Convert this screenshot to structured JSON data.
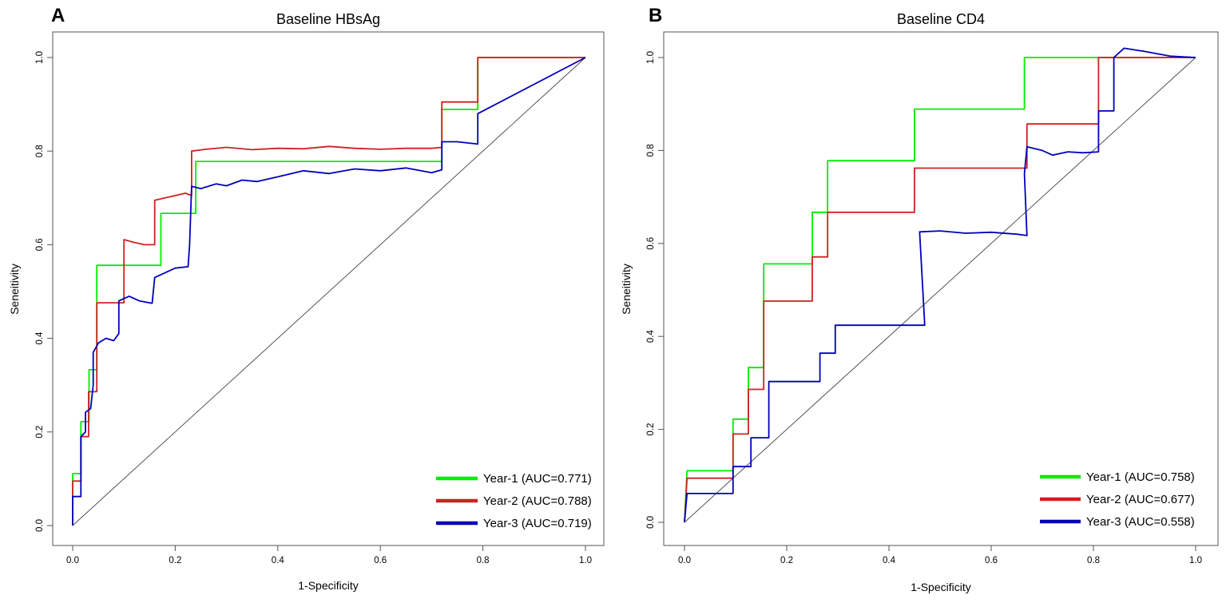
{
  "figure": {
    "background": "#ffffff",
    "axis_color": "#555555",
    "diagonal_color": "#444444"
  },
  "chart_data": [
    {
      "panel": "A",
      "type": "line",
      "title": "Baseline HBsAg",
      "xlabel": "1-Specificity",
      "ylabel": "Seneitivity",
      "xlim": [
        0,
        1
      ],
      "ylim": [
        0,
        1
      ],
      "xticks": [
        0.0,
        0.2,
        0.4,
        0.6,
        0.8,
        1.0
      ],
      "xtick_labels": [
        "0.0",
        "0.2",
        "0.4",
        "0.6",
        "0.8",
        "1.0"
      ],
      "yticks": [
        0.0,
        0.2,
        0.4,
        0.6,
        0.8,
        1.0
      ],
      "ytick_labels": [
        "0.0",
        "0.2",
        "0.4",
        "0.6",
        "0.8",
        "1.0"
      ],
      "grid": false,
      "reference_diagonal": true,
      "legend_position": "bottom-right",
      "series": [
        {
          "name": "Year-1",
          "legend_label": "Year-1 (AUC=0.771)",
          "auc": 0.771,
          "color": "#00ee00",
          "points": [
            [
              0,
              0
            ],
            [
              0,
              0.111
            ],
            [
              0.016,
              0.111
            ],
            [
              0.016,
              0.222
            ],
            [
              0.032,
              0.222
            ],
            [
              0.032,
              0.333
            ],
            [
              0.047,
              0.333
            ],
            [
              0.047,
              0.556
            ],
            [
              0.172,
              0.556
            ],
            [
              0.172,
              0.667
            ],
            [
              0.24,
              0.667
            ],
            [
              0.24,
              0.778
            ],
            [
              0.72,
              0.778
            ],
            [
              0.72,
              0.889
            ],
            [
              0.79,
              0.889
            ],
            [
              0.79,
              1.0
            ],
            [
              1.0,
              1.0
            ]
          ]
        },
        {
          "name": "Year-2",
          "legend_label": "Year-2 (AUC=0.788)",
          "auc": 0.788,
          "color": "#cc2222",
          "points": [
            [
              0,
              0
            ],
            [
              0,
              0.095
            ],
            [
              0.016,
              0.095
            ],
            [
              0.016,
              0.19
            ],
            [
              0.031,
              0.19
            ],
            [
              0.031,
              0.286
            ],
            [
              0.047,
              0.286
            ],
            [
              0.047,
              0.476
            ],
            [
              0.1,
              0.476
            ],
            [
              0.1,
              0.611
            ],
            [
              0.12,
              0.605
            ],
            [
              0.14,
              0.6
            ],
            [
              0.16,
              0.6
            ],
            [
              0.16,
              0.695
            ],
            [
              0.18,
              0.7
            ],
            [
              0.2,
              0.705
            ],
            [
              0.22,
              0.71
            ],
            [
              0.232,
              0.705
            ],
            [
              0.232,
              0.8
            ],
            [
              0.26,
              0.804
            ],
            [
              0.3,
              0.808
            ],
            [
              0.35,
              0.803
            ],
            [
              0.4,
              0.806
            ],
            [
              0.45,
              0.805
            ],
            [
              0.5,
              0.81
            ],
            [
              0.55,
              0.806
            ],
            [
              0.6,
              0.804
            ],
            [
              0.65,
              0.806
            ],
            [
              0.7,
              0.806
            ],
            [
              0.72,
              0.808
            ],
            [
              0.72,
              0.905
            ],
            [
              0.79,
              0.905
            ],
            [
              0.79,
              1.0
            ],
            [
              1.0,
              1.0
            ]
          ]
        },
        {
          "name": "Year-3",
          "legend_label": "Year-3 (AUC=0.719)",
          "auc": 0.719,
          "color": "#0000bb",
          "points": [
            [
              0,
              0
            ],
            [
              0,
              0.062
            ],
            [
              0.016,
              0.062
            ],
            [
              0.016,
              0.19
            ],
            [
              0.025,
              0.2
            ],
            [
              0.025,
              0.242
            ],
            [
              0.035,
              0.25
            ],
            [
              0.04,
              0.3
            ],
            [
              0.04,
              0.37
            ],
            [
              0.05,
              0.39
            ],
            [
              0.065,
              0.4
            ],
            [
              0.08,
              0.395
            ],
            [
              0.09,
              0.41
            ],
            [
              0.09,
              0.48
            ],
            [
              0.11,
              0.49
            ],
            [
              0.13,
              0.48
            ],
            [
              0.155,
              0.475
            ],
            [
              0.16,
              0.53
            ],
            [
              0.18,
              0.54
            ],
            [
              0.2,
              0.55
            ],
            [
              0.225,
              0.553
            ],
            [
              0.228,
              0.6
            ],
            [
              0.232,
              0.725
            ],
            [
              0.25,
              0.72
            ],
            [
              0.28,
              0.73
            ],
            [
              0.3,
              0.726
            ],
            [
              0.33,
              0.738
            ],
            [
              0.36,
              0.735
            ],
            [
              0.4,
              0.745
            ],
            [
              0.45,
              0.758
            ],
            [
              0.5,
              0.752
            ],
            [
              0.55,
              0.762
            ],
            [
              0.6,
              0.758
            ],
            [
              0.65,
              0.764
            ],
            [
              0.7,
              0.754
            ],
            [
              0.72,
              0.76
            ],
            [
              0.72,
              0.82
            ],
            [
              0.75,
              0.82
            ],
            [
              0.79,
              0.815
            ],
            [
              0.79,
              0.88
            ],
            [
              1.0,
              1.0
            ]
          ]
        }
      ]
    },
    {
      "panel": "B",
      "type": "line",
      "title": "Baseline CD4",
      "xlabel": "1-Specificity",
      "ylabel": "Seneitivity",
      "xlim": [
        0,
        1
      ],
      "ylim": [
        0,
        1
      ],
      "xticks": [
        0.0,
        0.2,
        0.4,
        0.6,
        0.8,
        1.0
      ],
      "xtick_labels": [
        "0.0",
        "0.2",
        "0.4",
        "0.6",
        "0.8",
        "1.0"
      ],
      "yticks": [
        0.0,
        0.2,
        0.4,
        0.6,
        0.8,
        1.0
      ],
      "ytick_labels": [
        "0.0",
        "0.2",
        "0.4",
        "0.6",
        "0.8",
        "1.0"
      ],
      "grid": false,
      "reference_diagonal": true,
      "legend_position": "bottom-right",
      "series": [
        {
          "name": "Year-1",
          "legend_label": "Year-1 (AUC=0.758)",
          "auc": 0.758,
          "color": "#00ee00",
          "points": [
            [
              0,
              0
            ],
            [
              0.005,
              0.111
            ],
            [
              0.095,
              0.111
            ],
            [
              0.095,
              0.222
            ],
            [
              0.125,
              0.222
            ],
            [
              0.125,
              0.333
            ],
            [
              0.155,
              0.333
            ],
            [
              0.155,
              0.556
            ],
            [
              0.25,
              0.556
            ],
            [
              0.25,
              0.667
            ],
            [
              0.28,
              0.667
            ],
            [
              0.28,
              0.778
            ],
            [
              0.45,
              0.778
            ],
            [
              0.45,
              0.889
            ],
            [
              0.665,
              0.889
            ],
            [
              0.665,
              1.0
            ],
            [
              1.0,
              1.0
            ]
          ]
        },
        {
          "name": "Year-2",
          "legend_label": "Year-2 (AUC=0.677)",
          "auc": 0.677,
          "color": "#cc2222",
          "points": [
            [
              0,
              0
            ],
            [
              0.005,
              0.095
            ],
            [
              0.095,
              0.095
            ],
            [
              0.095,
              0.19
            ],
            [
              0.125,
              0.19
            ],
            [
              0.125,
              0.286
            ],
            [
              0.155,
              0.286
            ],
            [
              0.155,
              0.476
            ],
            [
              0.25,
              0.476
            ],
            [
              0.25,
              0.571
            ],
            [
              0.28,
              0.571
            ],
            [
              0.28,
              0.667
            ],
            [
              0.45,
              0.667
            ],
            [
              0.45,
              0.762
            ],
            [
              0.67,
              0.762
            ],
            [
              0.67,
              0.857
            ],
            [
              0.81,
              0.857
            ],
            [
              0.81,
              1.0
            ],
            [
              1.0,
              1.0
            ]
          ]
        },
        {
          "name": "Year-3",
          "legend_label": "Year-3 (AUC=0.558)",
          "auc": 0.558,
          "color": "#0000bb",
          "points": [
            [
              0,
              0
            ],
            [
              0.005,
              0.062
            ],
            [
              0.095,
              0.062
            ],
            [
              0.095,
              0.12
            ],
            [
              0.13,
              0.12
            ],
            [
              0.13,
              0.182
            ],
            [
              0.165,
              0.182
            ],
            [
              0.165,
              0.303
            ],
            [
              0.265,
              0.303
            ],
            [
              0.265,
              0.364
            ],
            [
              0.295,
              0.364
            ],
            [
              0.295,
              0.424
            ],
            [
              0.47,
              0.424
            ],
            [
              0.46,
              0.625
            ],
            [
              0.5,
              0.627
            ],
            [
              0.55,
              0.622
            ],
            [
              0.6,
              0.624
            ],
            [
              0.65,
              0.62
            ],
            [
              0.67,
              0.617
            ],
            [
              0.665,
              0.75
            ],
            [
              0.67,
              0.808
            ],
            [
              0.7,
              0.8
            ],
            [
              0.72,
              0.79
            ],
            [
              0.75,
              0.797
            ],
            [
              0.78,
              0.795
            ],
            [
              0.81,
              0.797
            ],
            [
              0.81,
              0.885
            ],
            [
              0.84,
              0.885
            ],
            [
              0.84,
              1.0
            ],
            [
              0.86,
              1.02
            ],
            [
              0.9,
              1.013
            ],
            [
              0.95,
              1.003
            ],
            [
              1.0,
              1.0
            ]
          ]
        }
      ]
    }
  ]
}
